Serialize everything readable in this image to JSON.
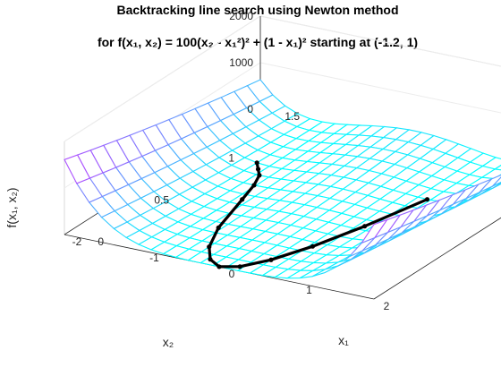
{
  "chart_data": {
    "type": "surface",
    "title_line1": "Backtracking line search using Newton method",
    "title_line2": "for f(x₁, x₂) = 100(x₂ - x₁²)² + (1 - x₁)² starting at (-1.2, 1)",
    "function": "100*(x2 - x1^2)^2 + (1 - x1)^2",
    "xlabel": "x₁",
    "ylabel": "x₂",
    "zlabel": "f(x₁, x₂)",
    "x1_range": [
      -2,
      2
    ],
    "x2_range": [
      0,
      1.5
    ],
    "z_range": [
      0,
      2000
    ],
    "x1_ticks": [
      "-2",
      "-1",
      "0",
      "1",
      "2"
    ],
    "x2_ticks": [
      "0",
      "0.5",
      "1",
      "1.5"
    ],
    "z_ticks": [
      "0",
      "1000",
      "2000"
    ],
    "grid_x1": 25,
    "grid_x2": 15,
    "colormap": "cool",
    "start_point": [
      -1.2,
      1
    ],
    "path": [
      [
        -1.2,
        1.0
      ],
      [
        -1.1,
        0.95
      ],
      [
        -1.0,
        0.9
      ],
      [
        -0.9,
        0.8
      ],
      [
        -0.8,
        0.65
      ],
      [
        -0.6,
        0.35
      ],
      [
        -0.4,
        0.16
      ],
      [
        -0.2,
        0.05
      ],
      [
        0.0,
        0.0
      ],
      [
        0.2,
        0.04
      ],
      [
        0.4,
        0.16
      ],
      [
        0.6,
        0.36
      ],
      [
        0.8,
        0.64
      ],
      [
        1.0,
        1.0
      ]
    ],
    "path_color": "#000000"
  }
}
